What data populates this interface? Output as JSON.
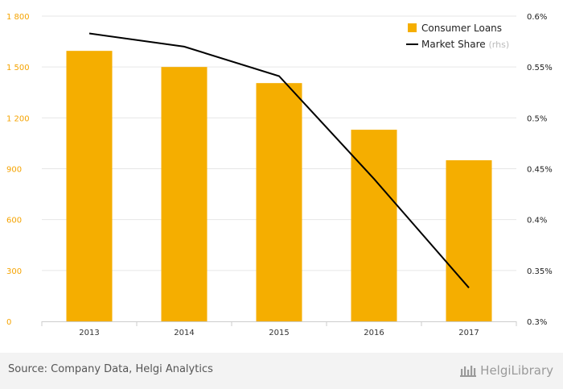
{
  "chart_data": {
    "type": "bar",
    "categories": [
      "2013",
      "2014",
      "2015",
      "2016",
      "2017"
    ],
    "series": [
      {
        "name": "Consumer Loans",
        "kind": "bar",
        "axis": "left",
        "color": "#f5ae00",
        "values": [
          1595,
          1500,
          1405,
          1130,
          950
        ]
      },
      {
        "name": "Market Share",
        "kind": "line",
        "axis": "right",
        "color": "#000000",
        "values": [
          0.583,
          0.57,
          0.541,
          0.44,
          0.333
        ]
      }
    ],
    "ylim_left": [
      0,
      1800
    ],
    "yticks_left": [
      0,
      300,
      600,
      900,
      1200,
      1500,
      1800
    ],
    "ytick_labels_left": [
      "0",
      "300",
      "600",
      "900",
      "1 200",
      "1 500",
      "1 800"
    ],
    "ylim_right": [
      0.3,
      0.6
    ],
    "yticks_right": [
      0.3,
      0.35,
      0.4,
      0.45,
      0.5,
      0.55,
      0.6
    ],
    "ytick_labels_right": [
      "0.3%",
      "0.35%",
      "0.4%",
      "0.45%",
      "0.5%",
      "0.55%",
      "0.6%"
    ],
    "legend": {
      "position": "top-right",
      "items": [
        {
          "label": "Consumer Loans",
          "sub": ""
        },
        {
          "label": "Market Share",
          "sub": "(rhs)"
        }
      ]
    },
    "grid": true
  },
  "footer": {
    "source": "Source: Company Data, Helgi Analytics",
    "logo_text": "HelgiLibrary"
  }
}
